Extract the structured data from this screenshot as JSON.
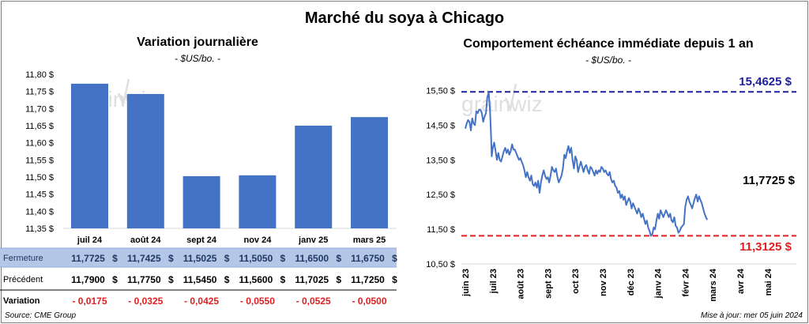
{
  "main_title": "Marché du soya à Chicago",
  "watermark": "grainwiz",
  "source": "Source: CME Group",
  "updated": "Mise à jour: mer 05 juin 2024",
  "table": {
    "closing_label": "Fermeture",
    "previous_label": "Précédent",
    "change_label": "Variation",
    "currency": "$",
    "closing": [
      "11,7725",
      "11,7425",
      "11,5025",
      "11,5050",
      "11,6500",
      "11,6750"
    ],
    "previous": [
      "11,7900",
      "11,7750",
      "11,5450",
      "11,5600",
      "11,7025",
      "11,7250"
    ],
    "change": [
      "- 0,0175",
      "- 0,0325",
      "- 0,0425",
      "- 0,0550",
      "- 0,0525",
      "- 0,0500"
    ]
  },
  "colors": {
    "bar": "#4472c4",
    "line": "#4472c4",
    "high": "#1f1f9f",
    "low": "#e02020",
    "change_negative": "#e02020",
    "closing_row_bg": "#b4c7e7"
  },
  "chart_data": [
    {
      "type": "bar",
      "title": "Variation journalière",
      "subtitle": "- $US/bo. -",
      "categories": [
        "juil 24",
        "août 24",
        "sept 24",
        "nov 24",
        "janv 25",
        "mars 25"
      ],
      "values": [
        11.7725,
        11.7425,
        11.5025,
        11.505,
        11.65,
        11.675
      ],
      "ylim": [
        11.35,
        11.8
      ],
      "yticks": [
        11.35,
        11.4,
        11.45,
        11.5,
        11.55,
        11.6,
        11.65,
        11.7,
        11.75,
        11.8
      ],
      "ytick_labels": [
        "11,35 $",
        "11,40 $",
        "11,45 $",
        "11,50 $",
        "11,55 $",
        "11,60 $",
        "11,65 $",
        "11,70 $",
        "11,75 $",
        "11,80 $"
      ],
      "grid": false
    },
    {
      "type": "line",
      "title": "Comportement  échéance immédiate depuis 1 an",
      "subtitle": "- $US/bo. -",
      "ylim": [
        10.5,
        15.9
      ],
      "yticks": [
        10.5,
        11.5,
        12.5,
        13.5,
        14.5,
        15.5
      ],
      "ytick_labels": [
        "10,50 $",
        "11,50 $",
        "12,50 $",
        "13,50 $",
        "14,50 $",
        "15,50 $"
      ],
      "xticks": [
        "juin 23",
        "juil 23",
        "août 23",
        "sept 23",
        "oct 23",
        "nov 23",
        "déc 23",
        "janv 24",
        "févr 24",
        "mars 24",
        "avr 24",
        "mai 24"
      ],
      "high": {
        "value": 15.4625,
        "label": "15,4625 $"
      },
      "low": {
        "value": 11.3125,
        "label": "11,3125 $"
      },
      "last": {
        "value": 11.7725,
        "label": "11,7725 $"
      },
      "points": [
        [
          0,
          14.4
        ],
        [
          0.05,
          14.55
        ],
        [
          0.1,
          14.65
        ],
        [
          0.15,
          14.6
        ],
        [
          0.2,
          14.35
        ],
        [
          0.25,
          14.7
        ],
        [
          0.3,
          14.55
        ],
        [
          0.35,
          14.5
        ],
        [
          0.4,
          14.9
        ],
        [
          0.45,
          14.85
        ],
        [
          0.5,
          14.95
        ],
        [
          0.55,
          14.95
        ],
        [
          0.6,
          14.85
        ],
        [
          0.65,
          14.6
        ],
        [
          0.7,
          14.75
        ],
        [
          0.75,
          14.85
        ],
        [
          0.8,
          15.3
        ],
        [
          0.85,
          15.45
        ],
        [
          0.9,
          14.9
        ],
        [
          0.93,
          14.3
        ],
        [
          0.96,
          13.6
        ],
        [
          1.0,
          13.85
        ],
        [
          1.05,
          14.0
        ],
        [
          1.1,
          13.75
        ],
        [
          1.15,
          13.5
        ],
        [
          1.2,
          13.7
        ],
        [
          1.25,
          13.5
        ],
        [
          1.3,
          13.45
        ],
        [
          1.35,
          13.6
        ],
        [
          1.4,
          13.75
        ],
        [
          1.45,
          13.85
        ],
        [
          1.5,
          13.7
        ],
        [
          1.55,
          13.8
        ],
        [
          1.6,
          13.65
        ],
        [
          1.65,
          13.75
        ],
        [
          1.7,
          13.95
        ],
        [
          1.75,
          13.8
        ],
        [
          1.8,
          13.8
        ],
        [
          1.85,
          13.7
        ],
        [
          1.9,
          13.6
        ],
        [
          1.95,
          13.5
        ],
        [
          2.0,
          13.55
        ],
        [
          2.05,
          13.45
        ],
        [
          2.1,
          13.35
        ],
        [
          2.15,
          13.2
        ],
        [
          2.2,
          13.0
        ],
        [
          2.25,
          13.15
        ],
        [
          2.3,
          13.0
        ],
        [
          2.35,
          12.9
        ],
        [
          2.4,
          13.05
        ],
        [
          2.45,
          12.8
        ],
        [
          2.5,
          12.75
        ],
        [
          2.55,
          12.85
        ],
        [
          2.6,
          12.7
        ],
        [
          2.65,
          12.9
        ],
        [
          2.7,
          12.55
        ],
        [
          2.75,
          12.85
        ],
        [
          2.8,
          13.05
        ],
        [
          2.85,
          13.2
        ],
        [
          2.9,
          13.05
        ],
        [
          2.95,
          12.95
        ],
        [
          3.0,
          13.0
        ],
        [
          3.05,
          12.85
        ],
        [
          3.1,
          13.05
        ],
        [
          3.15,
          13.3
        ],
        [
          3.2,
          13.2
        ],
        [
          3.25,
          13.15
        ],
        [
          3.3,
          13.25
        ],
        [
          3.35,
          13.0
        ],
        [
          3.4,
          12.85
        ],
        [
          3.45,
          12.95
        ],
        [
          3.5,
          13.05
        ],
        [
          3.55,
          13.25
        ],
        [
          3.6,
          13.65
        ],
        [
          3.65,
          13.55
        ],
        [
          3.7,
          13.75
        ],
        [
          3.75,
          13.9
        ],
        [
          3.8,
          13.7
        ],
        [
          3.85,
          13.85
        ],
        [
          3.9,
          13.5
        ],
        [
          3.95,
          13.25
        ],
        [
          4.0,
          13.6
        ],
        [
          4.05,
          13.5
        ],
        [
          4.1,
          13.15
        ],
        [
          4.15,
          13.3
        ],
        [
          4.2,
          13.45
        ],
        [
          4.25,
          13.3
        ],
        [
          4.3,
          13.15
        ],
        [
          4.35,
          13.3
        ],
        [
          4.4,
          13.35
        ],
        [
          4.45,
          13.2
        ],
        [
          4.5,
          13.1
        ],
        [
          4.55,
          13.3
        ],
        [
          4.6,
          13.25
        ],
        [
          4.65,
          13.15
        ],
        [
          4.7,
          13.05
        ],
        [
          4.75,
          13.2
        ],
        [
          4.8,
          13.1
        ],
        [
          4.85,
          13.2
        ],
        [
          4.9,
          13.15
        ],
        [
          4.95,
          13.3
        ],
        [
          5.0,
          13.25
        ],
        [
          5.05,
          13.15
        ],
        [
          5.1,
          13.2
        ],
        [
          5.15,
          13.1
        ],
        [
          5.2,
          13.05
        ],
        [
          5.25,
          13.15
        ],
        [
          5.3,
          12.95
        ],
        [
          5.35,
          12.85
        ],
        [
          5.4,
          12.9
        ],
        [
          5.45,
          12.75
        ],
        [
          5.5,
          12.7
        ],
        [
          5.55,
          12.55
        ],
        [
          5.6,
          12.6
        ],
        [
          5.65,
          12.4
        ],
        [
          5.7,
          12.5
        ],
        [
          5.75,
          12.35
        ],
        [
          5.8,
          12.45
        ],
        [
          5.85,
          12.2
        ],
        [
          5.9,
          12.3
        ],
        [
          5.95,
          12.4
        ],
        [
          6.0,
          12.3
        ],
        [
          6.05,
          12.1
        ],
        [
          6.1,
          12.25
        ],
        [
          6.15,
          12.15
        ],
        [
          6.2,
          12.05
        ],
        [
          6.25,
          11.95
        ],
        [
          6.3,
          12.1
        ],
        [
          6.35,
          12.0
        ],
        [
          6.4,
          11.85
        ],
        [
          6.45,
          11.95
        ],
        [
          6.5,
          11.8
        ],
        [
          6.55,
          11.65
        ],
        [
          6.6,
          11.75
        ],
        [
          6.65,
          11.55
        ],
        [
          6.7,
          11.45
        ],
        [
          6.75,
          11.3125
        ],
        [
          6.8,
          11.35
        ],
        [
          6.85,
          11.55
        ],
        [
          6.9,
          11.5
        ],
        [
          6.95,
          11.75
        ],
        [
          7.0,
          11.95
        ],
        [
          7.05,
          11.8
        ],
        [
          7.1,
          12.05
        ],
        [
          7.15,
          11.95
        ],
        [
          7.2,
          11.85
        ],
        [
          7.25,
          11.95
        ],
        [
          7.3,
          12.05
        ],
        [
          7.35,
          11.95
        ],
        [
          7.4,
          11.85
        ],
        [
          7.45,
          11.95
        ],
        [
          7.5,
          11.75
        ],
        [
          7.55,
          11.7
        ],
        [
          7.6,
          11.85
        ],
        [
          7.65,
          11.6
        ],
        [
          7.7,
          11.55
        ],
        [
          7.75,
          11.4
        ],
        [
          7.8,
          11.45
        ],
        [
          7.85,
          11.55
        ],
        [
          7.9,
          11.6
        ],
        [
          7.95,
          11.65
        ],
        [
          8.0,
          12.15
        ],
        [
          8.05,
          12.35
        ],
        [
          8.1,
          12.45
        ],
        [
          8.15,
          12.3
        ],
        [
          8.2,
          12.2
        ],
        [
          8.25,
          12.1
        ],
        [
          8.3,
          12.25
        ],
        [
          8.35,
          12.4
        ],
        [
          8.4,
          12.5
        ],
        [
          8.45,
          12.3
        ],
        [
          8.5,
          12.45
        ],
        [
          8.55,
          12.35
        ],
        [
          8.6,
          12.25
        ],
        [
          8.65,
          12.1
        ],
        [
          8.7,
          11.95
        ],
        [
          8.75,
          11.85
        ],
        [
          8.8,
          11.7725
        ]
      ]
    }
  ]
}
